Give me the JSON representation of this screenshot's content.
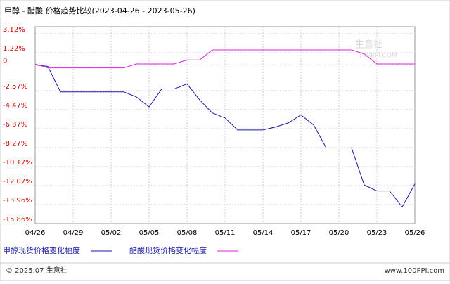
{
  "chart_data": {
    "type": "line",
    "title": "甲醇 - 醋酸 价格趋势比较(2023-04-26 - 2023-05-26)",
    "categories": [
      "04/26",
      null,
      null,
      "04/29",
      null,
      null,
      "05/02",
      null,
      null,
      "05/05",
      null,
      null,
      "05/08",
      null,
      null,
      "05/11",
      null,
      null,
      "05/14",
      null,
      null,
      "05/17",
      null,
      null,
      "05/20",
      null,
      null,
      "05/23",
      null,
      null,
      "05/26"
    ],
    "series": [
      {
        "name": "甲醇现货价格变化幅度",
        "color": "#1a1aa6",
        "values": [
          0,
          -0.15,
          -2.7,
          -2.7,
          -2.7,
          -2.7,
          -2.7,
          -2.7,
          -3.2,
          -4.2,
          -2.4,
          -2.4,
          -1.9,
          -3.5,
          -4.8,
          -5.3,
          -6.5,
          -6.5,
          -6.5,
          -6.2,
          -5.8,
          -5.0,
          -6.0,
          -8.3,
          -8.3,
          -8.3,
          -12.0,
          -12.6,
          -12.6,
          -14.2,
          -11.9
        ]
      },
      {
        "name": "醋酸现货价格变化幅度",
        "color": "#e020e0",
        "values": [
          0.1,
          -0.3,
          -0.3,
          -0.3,
          -0.3,
          -0.3,
          -0.3,
          -0.3,
          0.1,
          0.1,
          0.1,
          0.1,
          0.5,
          0.5,
          1.5,
          1.5,
          1.5,
          1.5,
          1.5,
          1.5,
          1.5,
          1.5,
          1.5,
          1.5,
          1.5,
          1.5,
          1.1,
          0.1,
          0.1,
          0.1,
          0.1
        ]
      }
    ],
    "ylim": [
      -15.86,
      3.12
    ],
    "yticks": [
      {
        "value": 3.12,
        "label": "3.12%"
      },
      {
        "value": 1.22,
        "label": "1.22%"
      },
      0,
      {
        "value": -2.57,
        "label": "-2.57%"
      },
      {
        "value": -4.47,
        "label": "-4.47%"
      },
      {
        "value": -6.37,
        "label": "-6.37%"
      },
      {
        "value": -8.27,
        "label": "-8.27%"
      },
      {
        "value": -10.17,
        "label": "-10.17%"
      },
      {
        "value": -12.07,
        "label": "-12.07%"
      },
      {
        "value": -13.96,
        "label": "-13.96%"
      },
      {
        "value": -15.86,
        "label": "-15.86%"
      }
    ],
    "grid": true,
    "watermark": [
      "生意社",
      "100PPI.COM"
    ],
    "footer_left": "© 2025.07 生意社",
    "footer_right": "www.100PPI.com"
  }
}
